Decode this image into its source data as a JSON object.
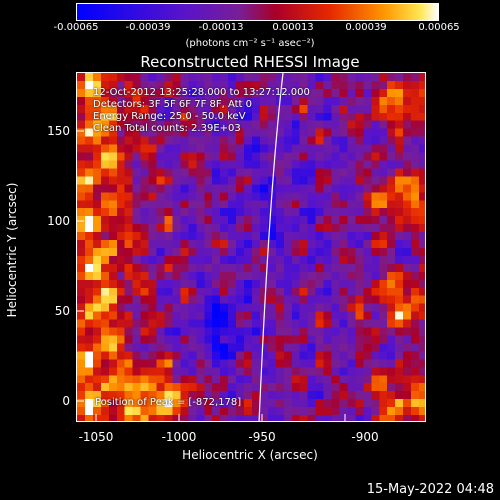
{
  "colorbar": {
    "ticks": [
      "-0.00065",
      "-0.00039",
      "-0.00013",
      "0.00013",
      "0.00039",
      "0.00065"
    ],
    "units": "(photons cm⁻² s⁻¹ asec⁻²)"
  },
  "title": "Reconstructed RHESSI Image",
  "info": {
    "line1": "12-Oct-2012 13:25:28.000 to 13:27:12.000",
    "line2": "Detectors: 3F 5F 6F 7F 8F, Att 0",
    "line3": "Energy Range: 25.0 - 50.0 keV",
    "line4": "Clean    Total counts: 2.39E+03",
    "peak": "Position of Peak = [-872,178]"
  },
  "axes": {
    "xlabel": "Heliocentric X (arcsec)",
    "ylabel": "Heliocentric Y (arcsec)",
    "xticks": [
      "-1050",
      "-1000",
      "-950",
      "-900"
    ],
    "yticks": [
      "150",
      "100",
      "50",
      "0"
    ]
  },
  "timestamp": "15-May-2022 04:48",
  "colors": {
    "background": "#000000",
    "text": "#ffffff"
  }
}
